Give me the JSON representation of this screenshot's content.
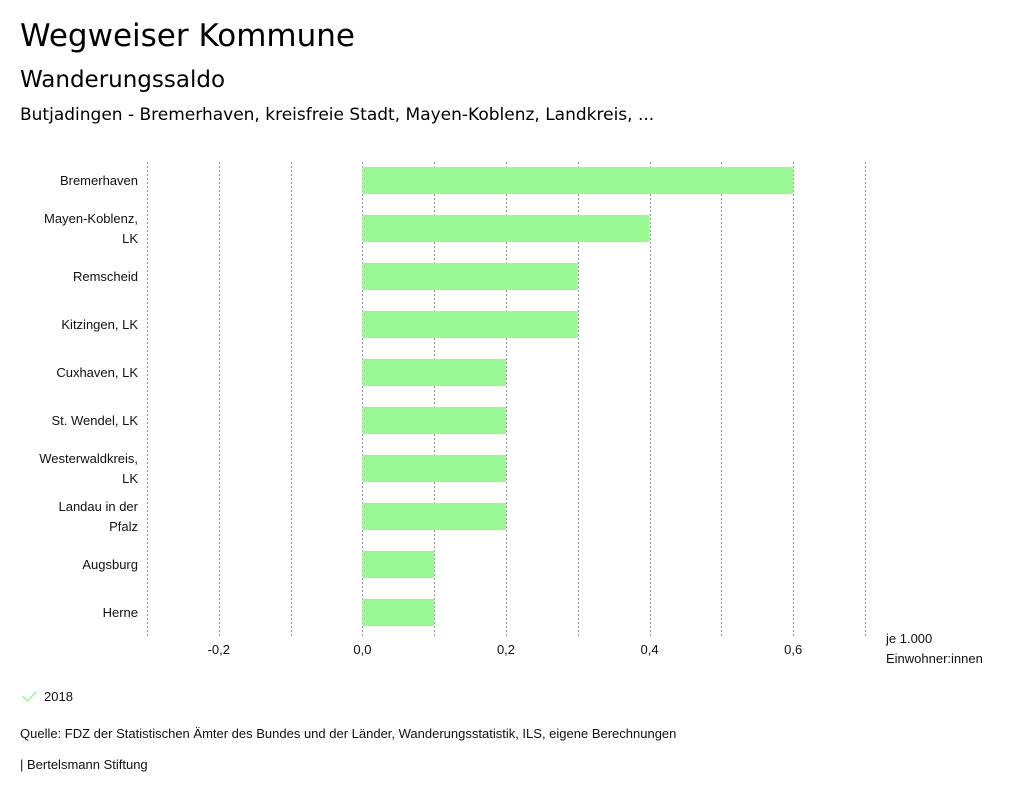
{
  "header": {
    "title": "Wegweiser Kommune",
    "subtitle": "Wanderungssaldo",
    "subsubtitle": "Butjadingen - Bremerhaven, kreisfreie Stadt, Mayen-Koblenz, Landkreis, ..."
  },
  "chart_data": {
    "type": "bar",
    "orientation": "horizontal",
    "categories": [
      [
        "Bremerhaven"
      ],
      [
        "Mayen-Koblenz,",
        "LK"
      ],
      [
        "Remscheid"
      ],
      [
        "Kitzingen, LK"
      ],
      [
        "Cuxhaven, LK"
      ],
      [
        "St. Wendel, LK"
      ],
      [
        "Westerwaldkreis,",
        "LK"
      ],
      [
        "Landau in der",
        "Pfalz"
      ],
      [
        "Augsburg"
      ],
      [
        "Herne"
      ]
    ],
    "series": [
      {
        "name": "2018",
        "color": "#99f993",
        "values": [
          0.6,
          0.4,
          0.3,
          0.3,
          0.2,
          0.2,
          0.2,
          0.2,
          0.1,
          0.1
        ]
      }
    ],
    "xlim": [
      -0.3,
      0.7
    ],
    "grid_values": [
      -0.3,
      -0.2,
      -0.1,
      0.0,
      0.1,
      0.2,
      0.3,
      0.4,
      0.5,
      0.6,
      0.7
    ],
    "tick_values": [
      -0.2,
      0.0,
      0.2,
      0.4,
      0.6
    ],
    "tick_labels": [
      "-0,2",
      "0,0",
      "0,2",
      "0,4",
      "0,6"
    ],
    "unit_label": [
      "je 1.000",
      "Einwohner:innen"
    ],
    "grid": true,
    "legend_position": "bottom-left"
  },
  "legend": {
    "label": "2018",
    "color": "#99f993"
  },
  "footer": {
    "source": "Quelle: FDZ der Statistischen Ämter des Bundes und der Länder, Wanderungsstatistik, ILS, eigene Berechnungen",
    "brand": "| Bertelsmann Stiftung"
  }
}
